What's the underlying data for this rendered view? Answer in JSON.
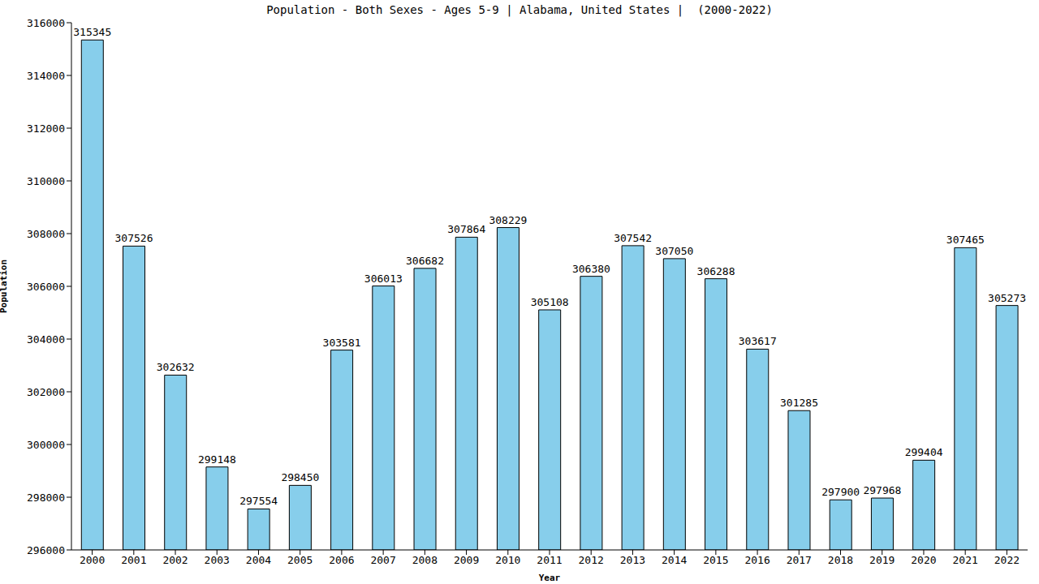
{
  "chart_data": {
    "type": "bar",
    "title": "Population - Both Sexes - Ages 5-9 | Alabama, United States |  (2000-2022)",
    "x_label": "Year",
    "y_label": "Population",
    "categories": [
      "2000",
      "2001",
      "2002",
      "2003",
      "2004",
      "2005",
      "2006",
      "2007",
      "2008",
      "2009",
      "2010",
      "2011",
      "2012",
      "2013",
      "2014",
      "2015",
      "2016",
      "2017",
      "2018",
      "2019",
      "2020",
      "2021",
      "2022"
    ],
    "values": [
      315345,
      307526,
      302632,
      299148,
      297554,
      298450,
      303581,
      306013,
      306682,
      307864,
      308229,
      305108,
      306380,
      307542,
      307050,
      306288,
      303617,
      301285,
      297900,
      297968,
      299404,
      307465,
      305273
    ],
    "color": "#87ceeb",
    "ylim": [
      296000,
      316000
    ],
    "yticks": [
      296000,
      298000,
      300000,
      302000,
      304000,
      306000,
      308000,
      310000,
      312000,
      314000,
      316000
    ],
    "grid": false,
    "data_labels": true
  }
}
